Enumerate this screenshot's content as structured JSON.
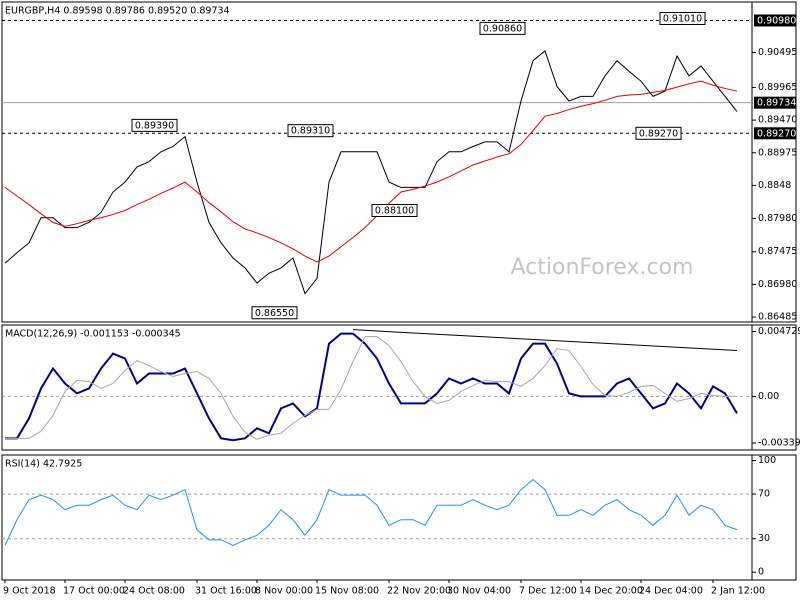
{
  "chart_data": [
    {
      "type": "line",
      "title": "EURGBP,H4  0.89598 0.89786 0.89520 0.89734",
      "watermark": "ActionForex.com",
      "ylim": [
        0.8641,
        0.9126
      ],
      "yticks": [
        0.90495,
        0.89965,
        {
          "value": 0.8947,
          "label": "0.89470"
        },
        0.88975,
        0.8848,
        {
          "value": 0.8798,
          "label": "0.87980"
        },
        0.87475,
        {
          "value": 0.8698,
          "label": "0.86980"
        },
        0.86485
      ],
      "levels": [
        {
          "value": 0.9098,
          "label": "0.90980",
          "style": "dashed"
        },
        {
          "value": 0.8927,
          "label": "0.89270",
          "style": "dashed"
        },
        {
          "value": 0.89734,
          "label": "0.89734",
          "style": "solid"
        }
      ],
      "series": [
        {
          "color": "#000000",
          "values": [
            0.873,
            0.8746,
            0.8761,
            0.8799,
            0.8799,
            0.8784,
            0.8784,
            0.8792,
            0.8807,
            0.8838,
            0.8853,
            0.8876,
            0.8884,
            0.8899,
            0.8907,
            0.8922,
            0.8853,
            0.8792,
            0.8761,
            0.8738,
            0.8723,
            0.87,
            0.8715,
            0.8723,
            0.8738,
            0.8684,
            0.8707,
            0.8853,
            0.8899,
            0.8899,
            0.8899,
            0.8899,
            0.8853,
            0.8845,
            0.8845,
            0.8845,
            0.8884,
            0.8899,
            0.8899,
            0.8907,
            0.8914,
            0.8914,
            0.8899,
            0.8976,
            0.9037,
            0.9052,
            0.8998,
            0.8976,
            0.8983,
            0.8983,
            0.9014,
            0.9037,
            0.9021,
            0.9006,
            0.8983,
            0.8991,
            0.9044,
            0.9014,
            0.9029,
            0.9006,
            0.8983,
            0.896
          ]
        },
        {
          "color": "#e00000",
          "values": [
            0.8845,
            0.8832,
            0.8819,
            0.8805,
            0.8792,
            0.8786,
            0.879,
            0.8795,
            0.8799,
            0.8804,
            0.881,
            0.8819,
            0.8827,
            0.8836,
            0.8844,
            0.8853,
            0.8838,
            0.8822,
            0.8808,
            0.8793,
            0.8782,
            0.8776,
            0.8769,
            0.8761,
            0.8752,
            0.8741,
            0.8732,
            0.8741,
            0.8755,
            0.8769,
            0.8784,
            0.8802,
            0.8821,
            0.8838,
            0.8842,
            0.8847,
            0.8853,
            0.8861,
            0.887,
            0.8879,
            0.8885,
            0.8891,
            0.8896,
            0.891,
            0.8931,
            0.8953,
            0.8957,
            0.8963,
            0.8968,
            0.8972,
            0.8977,
            0.8983,
            0.8985,
            0.8986,
            0.8989,
            0.8992,
            0.8997,
            0.9002,
            0.9006,
            0.9,
            0.8995,
            0.8991
          ]
        }
      ],
      "annotations": [
        {
          "text": "0.89390",
          "x": 15,
          "value": 0.8939
        },
        {
          "text": "0.86550",
          "x": 25,
          "value": 0.8655
        },
        {
          "text": "0.89310",
          "x": 28,
          "value": 0.8931
        },
        {
          "text": "0.88100",
          "x": 35,
          "value": 0.881
        },
        {
          "text": "0.90860",
          "x": 44,
          "value": 0.9086
        },
        {
          "text": "0.89270",
          "x": 57,
          "value": 0.8927
        },
        {
          "text": "0.91010",
          "x": 59,
          "value": 0.9101
        }
      ]
    },
    {
      "type": "line",
      "title": "MACD(12,26,9) -0.001153 -0.000345",
      "ylim": [
        -0.0039,
        0.0052
      ],
      "yticks": [
        0.004729,
        {
          "value": 0,
          "label": "0.00"
        },
        -0.003391
      ],
      "levels": [
        0
      ],
      "series": [
        {
          "color": "#00008b",
          "width": 2,
          "values": [
            -0.00305,
            -0.00305,
            -0.0016,
            0.00058,
            0.00203,
            0.00094,
            0.00022,
            0.00058,
            0.00203,
            0.00312,
            0.00276,
            0.00094,
            0.00167,
            0.00167,
            0.00167,
            0.00203,
            0.00022,
            -0.0016,
            -0.00305,
            -0.00319,
            -0.00305,
            -0.00232,
            -0.00268,
            -0.00087,
            -0.00051,
            -0.00145,
            -0.00087,
            0.00384,
            0.00457,
            0.00457,
            0.00384,
            0.00276,
            0.00094,
            -0.00051,
            -0.00051,
            -0.00051,
            0.00022,
            0.00131,
            0.00094,
            0.00131,
            0.00094,
            0.00094,
            0.00022,
            0.00276,
            0.00384,
            0.00384,
            0.00239,
            0.00022,
            0,
            0,
            0,
            0.00094,
            0.00131,
            0.00022,
            -0.00087,
            -0.00051,
            0.00094,
            0.00022,
            -0.00087,
            0.00073,
            0.00022,
            -0.00123
          ]
        },
        {
          "color": "#a8a8a8",
          "values": [
            -0.00305,
            -0.00305,
            -0.00305,
            -0.00254,
            -0.00138,
            0.00036,
            0.00116,
            0.00109,
            0.00058,
            0.00094,
            0.00189,
            0.00261,
            0.00225,
            0.00181,
            0.00145,
            0.00167,
            0.00181,
            0.00131,
            0.00022,
            -0.00145,
            -0.00261,
            -0.00312,
            -0.00283,
            -0.00268,
            -0.00196,
            -0.00138,
            -0.00094,
            -0.00094,
            0.00051,
            0.00254,
            0.00435,
            0.00435,
            0.0037,
            0.00254,
            0.00109,
            0,
            -0.00051,
            -0.00029,
            0.00036,
            0.0008,
            0.00116,
            0.00109,
            0.00109,
            0.00073,
            0.00131,
            0.00225,
            0.00348,
            0.00334,
            0.00218,
            0.00087,
            7e-05,
            0,
            0.00029,
            0.00073,
            0.0008,
            0.00022,
            -0.00036,
            -0.00015,
            0.00022,
            7e-05,
            0,
            0
          ]
        }
      ],
      "trendline": {
        "x": [
          29,
          61
        ],
        "values": [
          0.00486,
          0.00334
        ]
      }
    },
    {
      "type": "line",
      "title": "RSI(14) 42.7925",
      "ylim": [
        -7,
        105
      ],
      "yticks": [
        100,
        70,
        30,
        0
      ],
      "levels": [
        70,
        30
      ],
      "series": [
        {
          "color": "#1e90ff",
          "values": [
            24,
            47,
            65,
            69,
            65,
            56,
            60,
            60,
            65,
            69,
            60,
            56,
            69,
            65,
            69,
            74,
            38,
            29,
            29,
            24,
            29,
            33,
            42,
            56,
            47,
            33,
            47,
            74,
            69,
            69,
            69,
            60,
            42,
            47,
            47,
            42,
            60,
            60,
            60,
            65,
            60,
            56,
            60,
            74,
            83,
            74,
            51,
            51,
            56,
            51,
            60,
            65,
            56,
            51,
            42,
            51,
            69,
            51,
            60,
            56,
            42,
            38
          ]
        }
      ],
      "categories": [
        "9 Oct 2018",
        null,
        null,
        null,
        null,
        "17 Oct 00:00",
        null,
        null,
        null,
        null,
        "24 Oct 08:00",
        null,
        null,
        null,
        null,
        null,
        "31 Oct 16:00",
        null,
        null,
        null,
        null,
        "8 Nov 00:00",
        null,
        null,
        null,
        null,
        "15 Nov 08:00",
        null,
        null,
        null,
        null,
        null,
        "22 Nov 20:00",
        null,
        null,
        null,
        null,
        "30 Nov 04:00",
        null,
        null,
        null,
        null,
        null,
        "7 Dec 12:00",
        null,
        null,
        null,
        null,
        "14 Dec 20:00",
        null,
        null,
        null,
        null,
        "24 Dec 04:00",
        null,
        null,
        null,
        null,
        null,
        "2 Jan 12:00",
        null,
        null
      ]
    }
  ]
}
